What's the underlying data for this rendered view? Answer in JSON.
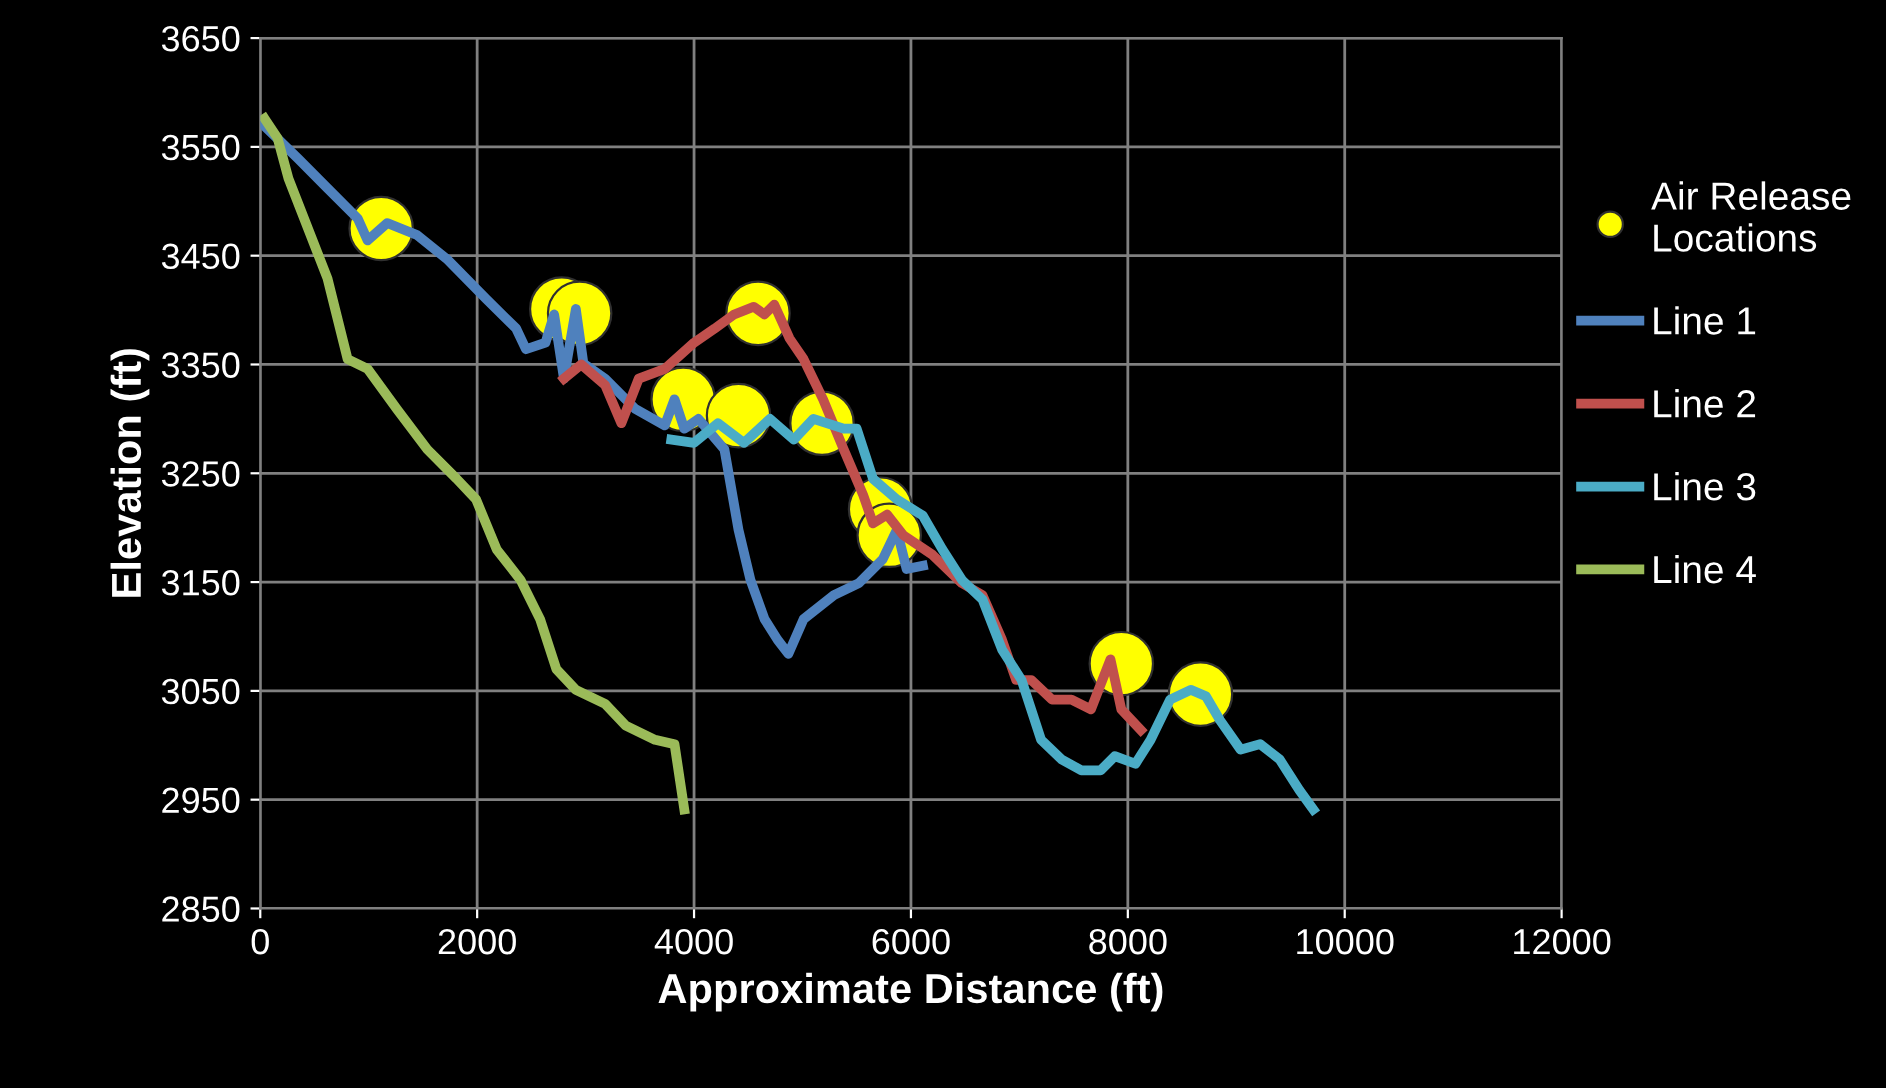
{
  "chart_data": {
    "type": "line",
    "xlabel": "Approximate Distance (ft)",
    "ylabel": "Elevation (ft)",
    "xlim": [
      0,
      12000
    ],
    "xticks": [
      0,
      2000,
      4000,
      6000,
      8000,
      10000,
      12000
    ],
    "ylim": [
      2850,
      3650
    ],
    "yticks": [
      2850,
      2950,
      3050,
      3150,
      3250,
      3350,
      3450,
      3550,
      3650
    ],
    "grid": true,
    "legend": "right",
    "marker": "none",
    "line_style": "solid",
    "series": [
      {
        "name": "Air Release Locations",
        "type": "scatter",
        "marker": "circle",
        "color": "#ffff00",
        "x": [
          1115,
          2780,
          2945,
          3900,
          4410,
          4590,
          5180,
          5720,
          5800,
          7940,
          8670
        ],
        "values": [
          3475,
          3401,
          3397,
          3318,
          3303,
          3397,
          3296,
          3217,
          3193,
          3075,
          3047
        ]
      },
      {
        "name": "Line 1",
        "color": "#4f81bd",
        "x": [
          0,
          350,
          620,
          900,
          990,
          1170,
          1445,
          1720,
          2085,
          2360,
          2450,
          2630,
          2710,
          2800,
          2910,
          2980,
          3180,
          3460,
          3730,
          3820,
          3910,
          4040,
          4280,
          4410,
          4520,
          4650,
          4770,
          4870,
          5010,
          5290,
          5520,
          5740,
          5870,
          5960,
          6110
        ],
        "values": [
          3573,
          3539,
          3512,
          3484,
          3464,
          3480,
          3469,
          3447,
          3410,
          3383,
          3364,
          3370,
          3396,
          3337,
          3401,
          3351,
          3337,
          3309,
          3294,
          3318,
          3291,
          3300,
          3272,
          3198,
          3152,
          3116,
          3097,
          3084,
          3116,
          3138,
          3149,
          3171,
          3198,
          3162,
          3165
        ]
      },
      {
        "name": "Line 2",
        "color": "#c0504d",
        "x": [
          2800,
          2960,
          3180,
          3330,
          3490,
          3730,
          4000,
          4190,
          4370,
          4550,
          4650,
          4740,
          4880,
          5010,
          5190,
          5380,
          5560,
          5650,
          5780,
          5930,
          6200,
          6470,
          6660,
          6840,
          6970,
          7110,
          7300,
          7480,
          7660,
          7840,
          7940,
          8120
        ],
        "values": [
          3337,
          3350,
          3331,
          3296,
          3337,
          3346,
          3370,
          3383,
          3396,
          3403,
          3396,
          3405,
          3374,
          3355,
          3318,
          3272,
          3230,
          3204,
          3212,
          3193,
          3175,
          3149,
          3138,
          3097,
          3060,
          3060,
          3042,
          3042,
          3033,
          3079,
          3033,
          3014
        ]
      },
      {
        "name": "Line 3",
        "color": "#4bacc6",
        "x": [
          3790,
          4000,
          4220,
          4460,
          4700,
          4920,
          5100,
          5380,
          5500,
          5650,
          5870,
          6110,
          6290,
          6470,
          6660,
          6840,
          7020,
          7200,
          7390,
          7570,
          7750,
          7880,
          8070,
          8210,
          8390,
          8580,
          8720,
          8850,
          9040,
          9220,
          9400,
          9580,
          9710
        ],
        "values": [
          3281,
          3278,
          3296,
          3278,
          3300,
          3281,
          3300,
          3291,
          3291,
          3245,
          3226,
          3211,
          3180,
          3152,
          3134,
          3088,
          3060,
          3005,
          2987,
          2977,
          2977,
          2990,
          2983,
          3005,
          3042,
          3051,
          3045,
          3023,
          2996,
          3001,
          2987,
          2959,
          2941
        ]
      },
      {
        "name": "Line 4",
        "color": "#9bbb59",
        "x": [
          40,
          160,
          260,
          440,
          620,
          805,
          990,
          1260,
          1540,
          1810,
          1990,
          2180,
          2400,
          2580,
          2730,
          2910,
          3180,
          3370,
          3640,
          3820,
          3910
        ],
        "values": [
          3576,
          3558,
          3521,
          3475,
          3429,
          3355,
          3346,
          3309,
          3272,
          3245,
          3226,
          3180,
          3152,
          3116,
          3070,
          3051,
          3038,
          3018,
          3005,
          3001,
          2941
        ]
      }
    ]
  }
}
